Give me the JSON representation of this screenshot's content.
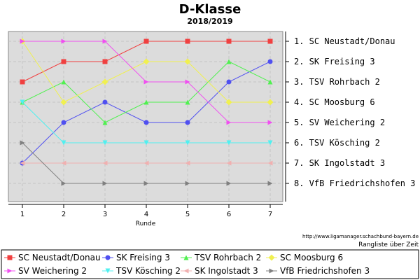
{
  "chart_data": {
    "type": "line",
    "title": "D-Klasse",
    "subtitle": "2018/2019",
    "xlabel": "Runde",
    "x": [
      1,
      2,
      3,
      4,
      5,
      6,
      7
    ],
    "ylim": [
      8,
      1
    ],
    "y_reversed": true,
    "grid": true,
    "background": "#dcdcdc",
    "rank_labels": [
      "1. SC Neustadt/Donau",
      "2. SK Freising 3",
      "3. TSV Rohrbach 2",
      "4. SC Moosburg 6",
      "5. SV Weichering 2",
      "6. TSV Kösching 2",
      "7. SK Ingolstadt 3",
      "8. VfB Friedrichshofen 3"
    ],
    "series": [
      {
        "name": "SC Neustadt/Donau",
        "color": "#f04040",
        "marker": "square",
        "values": [
          3,
          2,
          2,
          1,
          1,
          1,
          1
        ]
      },
      {
        "name": "SK Freising 3",
        "color": "#5050f0",
        "marker": "circle",
        "values": [
          7,
          5,
          4,
          5,
          5,
          3,
          2
        ]
      },
      {
        "name": "TSV Rohrbach 2",
        "color": "#50f050",
        "marker": "triangle-up",
        "values": [
          4,
          3,
          5,
          4,
          4,
          2,
          3
        ]
      },
      {
        "name": "SC Moosburg 6",
        "color": "#f0f050",
        "marker": "diamond",
        "values": [
          1,
          4,
          3,
          2,
          2,
          4,
          4
        ]
      },
      {
        "name": "SV Weichering 2",
        "color": "#f050f0",
        "marker": "triangle-right",
        "values": [
          1,
          1,
          1,
          3,
          3,
          5,
          5
        ]
      },
      {
        "name": "TSV Kösching 2",
        "color": "#50f0f0",
        "marker": "triangle-down",
        "values": [
          4,
          6,
          6,
          6,
          6,
          6,
          6
        ]
      },
      {
        "name": "SK Ingolstadt 3",
        "color": "#f0b0b0",
        "marker": "triangle-left",
        "values": [
          7,
          7,
          7,
          7,
          7,
          7,
          7
        ]
      },
      {
        "name": "VfB Friedrichshofen 3",
        "color": "#808080",
        "marker": "triangle-right",
        "values": [
          6,
          8,
          8,
          8,
          8,
          8,
          8
        ]
      }
    ],
    "source_lines": [
      "http://www.ligamanager.schachbund-bayern.de",
      "Rangliste über Zeit"
    ]
  }
}
